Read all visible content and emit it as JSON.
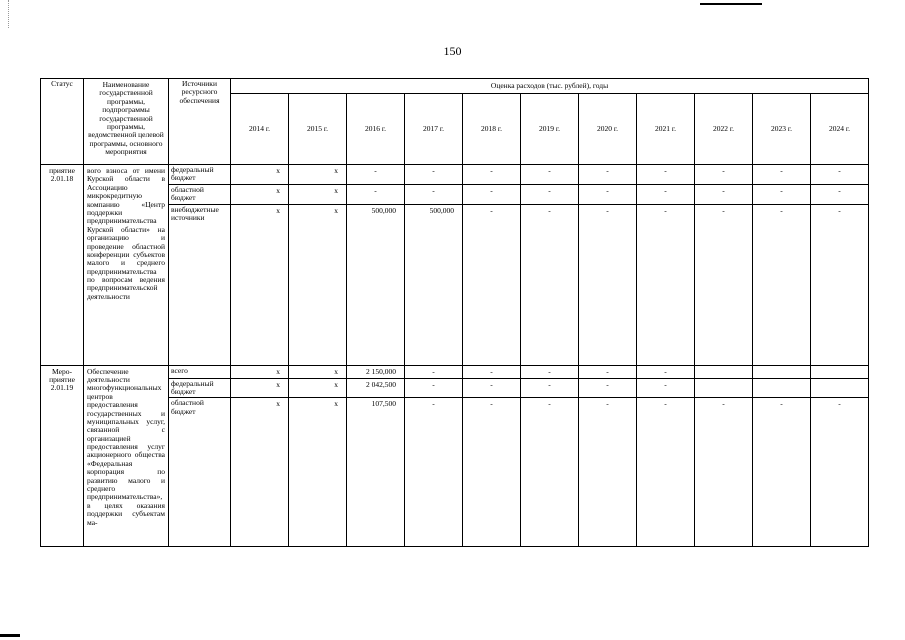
{
  "page": {
    "number": "150"
  },
  "table": {
    "headers": {
      "status": "Статус",
      "name": "Наименование государственной программы, подпрограммы государственной программы, ведомственной целевой программы, основного мероприятия",
      "sources": "Источники ресурсного обеспечения",
      "expenses": "Оценка расходов (тыс. рублей), годы",
      "years": [
        "2014 г.",
        "2015 г.",
        "2016 г.",
        "2017 г.",
        "2018 г.",
        "2019 г.",
        "2020 г.",
        "2021 г.",
        "2022 г.",
        "2023 г.",
        "2024 г."
      ]
    },
    "groups": [
      {
        "status": "приятие 2.01.18",
        "name": "вого взноса от имени Курской области в Ассоциацию микрокредитную компанию «Центр поддержки предпринимательства Курской области» на организацию и проведение областной конференции субъектов малого и среднего предпринимательства по вопросам ведения предпринимательской деятельности",
        "rows": [
          {
            "source": "федеральный бюджет",
            "values": [
              "х",
              "х",
              "-",
              "-",
              "-",
              "-",
              "-",
              "-",
              "-",
              "-",
              "-"
            ]
          },
          {
            "source": "областной бюджет",
            "values": [
              "х",
              "х",
              "-",
              "-",
              "-",
              "-",
              "-",
              "-",
              "-",
              "-",
              "-"
            ]
          },
          {
            "source": "внебюджетные источники",
            "values": [
              "х",
              "х",
              "500,000",
              "500,000",
              "-",
              "-",
              "-",
              "-",
              "-",
              "-",
              "-"
            ]
          }
        ]
      },
      {
        "status": "Меро-приятие 2.01.19",
        "name": "Обеспечение деятельности многофункциональных центров предоставления государственных и муниципальных услуг, связанной с организацией предоставления услуг акционерного общества «Федеральная корпорация по развитию малого и среднего предпринимательства», в целях оказания поддержки субъектам ма-",
        "rows": [
          {
            "source": "всего",
            "values": [
              "х",
              "х",
              "2 150,000",
              "-",
              "-",
              "-",
              "-",
              "-",
              "",
              "",
              ""
            ]
          },
          {
            "source": "федеральный бюджет",
            "values": [
              "х",
              "х",
              "2 042,500",
              "-",
              "-",
              "-",
              "-",
              "-",
              "",
              "",
              ""
            ]
          },
          {
            "source": "областной бюджет",
            "values": [
              "х",
              "х",
              "107,500",
              "-",
              "-",
              "-",
              "-",
              "-",
              "-",
              "-",
              "-"
            ]
          }
        ]
      }
    ]
  }
}
